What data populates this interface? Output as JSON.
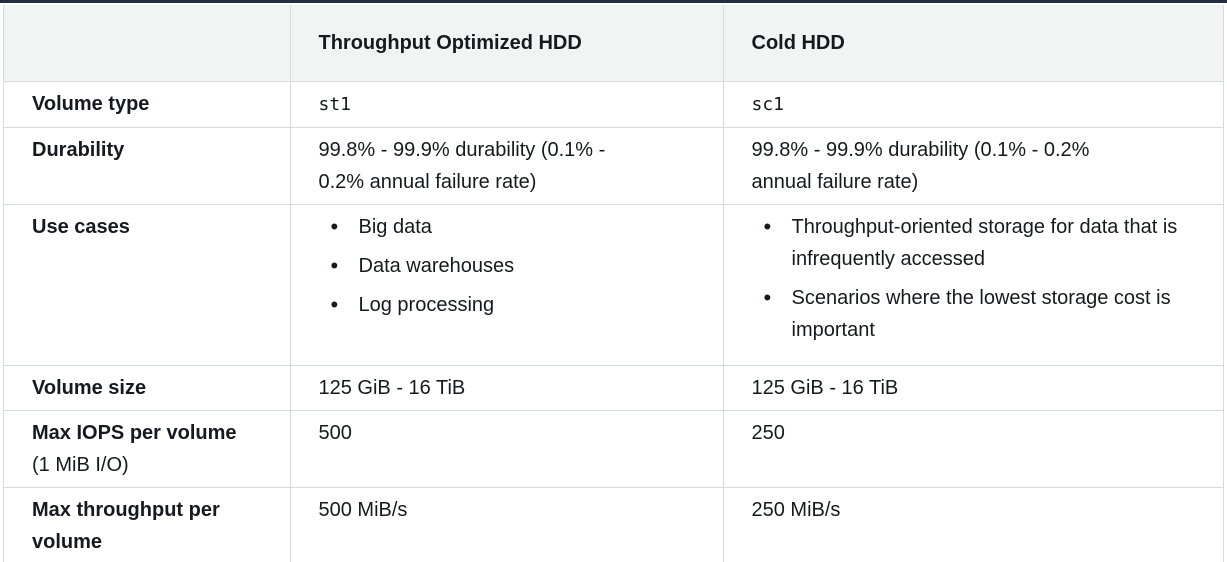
{
  "table": {
    "header": {
      "col1": "",
      "col2": "Throughput Optimized HDD",
      "col3": "Cold HDD"
    },
    "rows": {
      "volume_type": {
        "label": "Volume type",
        "throughput_optimized": "st1",
        "cold": "sc1"
      },
      "durability": {
        "label": "Durability",
        "throughput_optimized_line1": "99.8% - 99.9% durability (0.1% -",
        "throughput_optimized_line2": "0.2% annual failure rate)",
        "cold_line1": "99.8% - 99.9% durability (0.1% - 0.2%",
        "cold_line2": "annual failure rate)"
      },
      "use_cases": {
        "label": "Use cases",
        "throughput_optimized": [
          "Big data",
          "Data warehouses",
          "Log processing"
        ],
        "cold": [
          "Throughput-oriented storage for data that is infrequently accessed",
          "Scenarios where the lowest storage cost is important"
        ]
      },
      "volume_size": {
        "label": "Volume size",
        "throughput_optimized": "125 GiB - 16 TiB",
        "cold": "125 GiB - 16 TiB"
      },
      "max_iops": {
        "label": "Max IOPS per volume",
        "sublabel": "(1 MiB I/O)",
        "throughput_optimized": "500",
        "cold": "250"
      },
      "max_throughput": {
        "label": "Max throughput per volume",
        "throughput_optimized": "500 MiB/s",
        "cold": "250 MiB/s"
      }
    }
  }
}
